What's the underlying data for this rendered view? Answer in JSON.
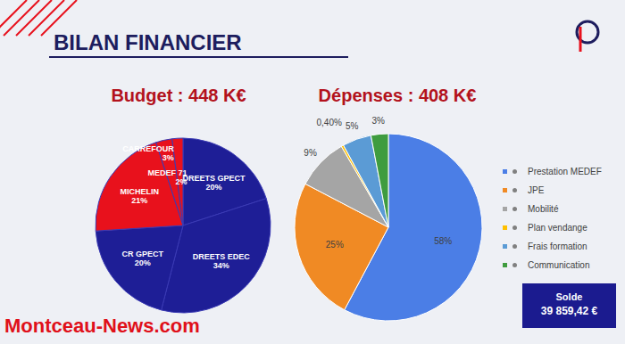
{
  "title": "BILAN FINANCIER",
  "watermark": "Montceau-News.com",
  "chart_data": [
    {
      "type": "pie",
      "title": "Budget : 448 K€",
      "categories": [
        "DREETS GPECT",
        "DREETS EDEC",
        "CR GPECT",
        "MICHELIN",
        "CARREFOUR",
        "MEDEF 71"
      ],
      "values": [
        20,
        34,
        20,
        21,
        3,
        2
      ],
      "value_labels": [
        "20%",
        "34%",
        "20%",
        "21%",
        "3%",
        "2%"
      ],
      "colors": [
        "#1e1e96",
        "#1e1e96",
        "#1e1e96",
        "#e8111c",
        "#e8111c",
        "#e8111c"
      ],
      "data_labels": true
    },
    {
      "type": "pie",
      "title": "Dépenses : 408 K€",
      "categories": [
        "Prestation MEDEF",
        "JPE",
        "Mobilité",
        "Plan vendange",
        "Frais formation",
        "Communication"
      ],
      "values": [
        58,
        25,
        9,
        0.4,
        5,
        3
      ],
      "value_labels": [
        "58%",
        "25%",
        "9%",
        "0,40%",
        "5%",
        "3%"
      ],
      "colors": [
        "#4b7ee6",
        "#f08a24",
        "#a5a5a5",
        "#ffc000",
        "#5b9bd5",
        "#3f9c3f"
      ],
      "data_labels": true,
      "legend": "right",
      "annotation": {
        "title": "Solde",
        "text": "39 859,42 €"
      }
    }
  ]
}
